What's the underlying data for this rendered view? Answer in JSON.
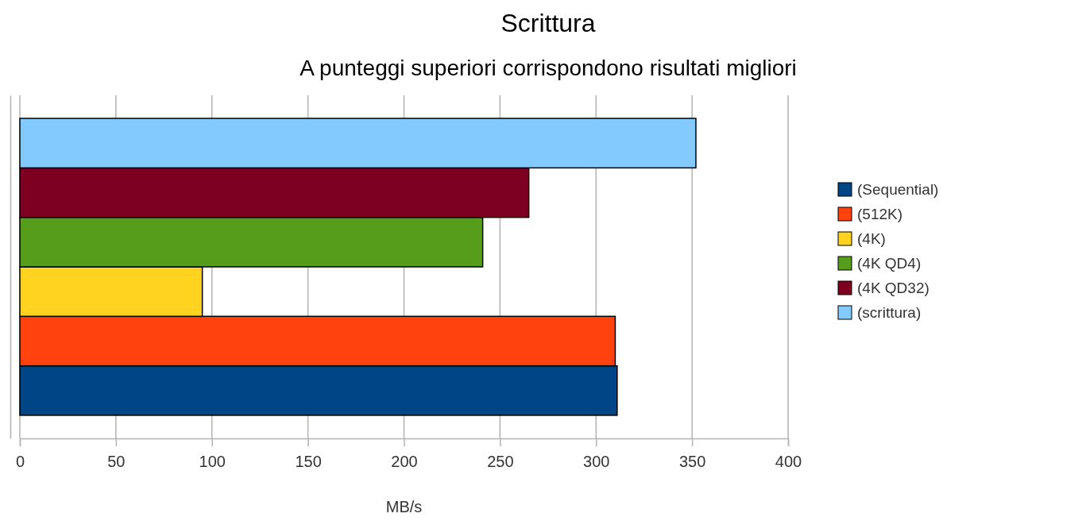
{
  "chart_data": {
    "type": "bar",
    "orientation": "horizontal",
    "title": "Scrittura",
    "subtitle": "A punteggi superiori corrispondono risultati migliori",
    "xlabel": "MB/s",
    "categories": [
      null
    ],
    "series": [
      {
        "name": "(Sequential)",
        "color": "#004586",
        "values": [
          311
        ]
      },
      {
        "name": "(512K)",
        "color": "#ff420e",
        "values": [
          310
        ]
      },
      {
        "name": "(4K)",
        "color": "#ffd320",
        "values": [
          95
        ]
      },
      {
        "name": "(4K QD4)",
        "color": "#579d1c",
        "values": [
          241
        ]
      },
      {
        "name": "(4K QD32)",
        "color": "#7e0021",
        "values": [
          265
        ]
      },
      {
        "name": "(scrittura)",
        "color": "#83caff",
        "values": [
          352
        ]
      }
    ],
    "xlim": [
      0,
      400
    ],
    "xticks": [
      0,
      50,
      100,
      150,
      200,
      250,
      300,
      350,
      400
    ],
    "grid": "x",
    "legend": "right"
  }
}
